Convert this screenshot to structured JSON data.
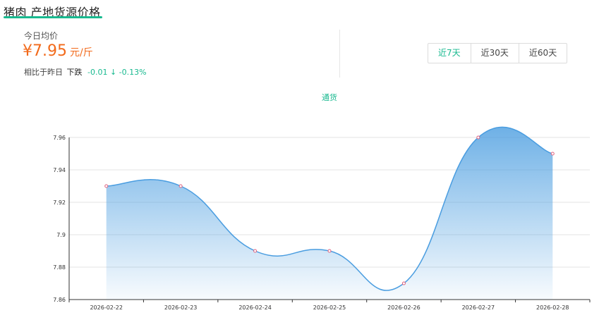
{
  "header": {
    "title": "猪肉 产地货源价格"
  },
  "summary": {
    "today_label": "今日均价",
    "price": "¥7.95",
    "unit": "元/斤",
    "compare_label": "相比于昨日",
    "direction": "下跌",
    "change": "-0.01 ↓ -0.13%"
  },
  "range_tabs": [
    {
      "label": "近7天",
      "active": true
    },
    {
      "label": "近30天",
      "active": false
    },
    {
      "label": "近60天",
      "active": false
    }
  ],
  "colors": {
    "accent": "#18b98f",
    "price": "#f26a1b",
    "line": "#4a9de0"
  },
  "chart_data": {
    "type": "area",
    "legend": "通货",
    "legend_position": "top-center",
    "categories": [
      "2026-02-22",
      "2026-02-23",
      "2026-02-24",
      "2026-02-25",
      "2026-02-26",
      "2026-02-27",
      "2026-02-28"
    ],
    "series": [
      {
        "name": "通货",
        "values": [
          7.93,
          7.93,
          7.89,
          7.89,
          7.87,
          7.96,
          7.95
        ]
      }
    ],
    "ylim": [
      7.86,
      7.96
    ],
    "yticks": [
      "7.86",
      "7.88",
      "7.9",
      "7.92",
      "7.94",
      "7.96"
    ],
    "grid": true,
    "smooth": true
  }
}
